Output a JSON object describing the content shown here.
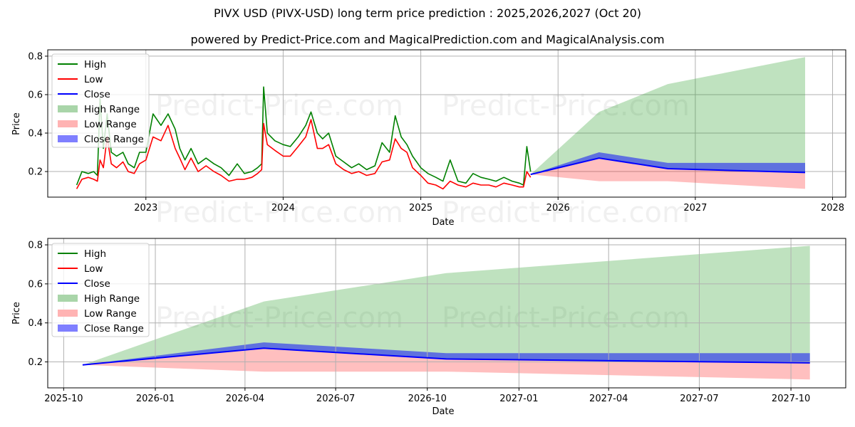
{
  "header": {
    "title": "PIVX USD (PIVX-USD) long term price prediction : 2025,2026,2027 (Oct 20)",
    "subtitle": "powered by Predict-Price.com and MagicalPrediction.com and MagicalAnalysis.com"
  },
  "watermark": "Predict-Price.com",
  "colors": {
    "high": "#008000",
    "low": "#ff0000",
    "close": "#0000ff",
    "high_range": "#2ca02c",
    "low_range": "#ff6666",
    "close_range": "#0000ff",
    "grid": "#b0b0b0"
  },
  "legend": {
    "items": [
      {
        "label": "High",
        "kind": "line",
        "color": "#008000"
      },
      {
        "label": "Low",
        "kind": "line",
        "color": "#ff0000"
      },
      {
        "label": "Close",
        "kind": "line",
        "color": "#0000ff"
      },
      {
        "label": "High Range",
        "kind": "patch",
        "color": "#a9d5a9"
      },
      {
        "label": "Low Range",
        "kind": "patch",
        "color": "#ffb3b3"
      },
      {
        "label": "Close Range",
        "kind": "patch",
        "color": "#7f7fff"
      }
    ]
  },
  "chart_data": [
    {
      "type": "line",
      "title": "PIVX USD (PIVX-USD) long term price prediction : 2025,2026,2027 (Oct 20)",
      "subtitle": "powered by Predict-Price.com and MagicalPrediction.com and MagicalAnalysis.com",
      "xlabel": "Date",
      "ylabel": "Price",
      "ylim": [
        0.067,
        0.833
      ],
      "xlim": [
        "2022-04-15",
        "2028-02-05"
      ],
      "xticks": [
        "2023",
        "2024",
        "2025",
        "2026",
        "2027",
        "2028"
      ],
      "yticks": [
        "0.2",
        "0.4",
        "0.6",
        "0.8"
      ],
      "grid": true,
      "legend_position": "upper left",
      "historical": {
        "x": [
          "2022-07-01",
          "2022-07-15",
          "2022-08-01",
          "2022-08-15",
          "2022-08-25",
          "2022-09-01",
          "2022-09-10",
          "2022-09-20",
          "2022-10-01",
          "2022-10-15",
          "2022-11-01",
          "2022-11-15",
          "2022-12-01",
          "2022-12-15",
          "2023-01-01",
          "2023-01-20",
          "2023-02-10",
          "2023-03-01",
          "2023-03-20",
          "2023-04-01",
          "2023-04-15",
          "2023-05-01",
          "2023-05-20",
          "2023-06-10",
          "2023-07-01",
          "2023-07-20",
          "2023-08-10",
          "2023-09-01",
          "2023-09-20",
          "2023-10-10",
          "2023-10-25",
          "2023-11-05",
          "2023-11-10",
          "2023-11-20",
          "2023-12-10",
          "2024-01-01",
          "2024-01-20",
          "2024-02-10",
          "2024-03-01",
          "2024-03-15",
          "2024-04-01",
          "2024-04-15",
          "2024-05-01",
          "2024-05-20",
          "2024-06-10",
          "2024-07-01",
          "2024-07-20",
          "2024-08-10",
          "2024-09-01",
          "2024-09-20",
          "2024-10-10",
          "2024-10-25",
          "2024-11-10",
          "2024-11-25",
          "2024-12-10",
          "2025-01-01",
          "2025-01-20",
          "2025-02-10",
          "2025-03-01",
          "2025-03-20",
          "2025-04-10",
          "2025-05-01",
          "2025-05-20",
          "2025-06-10",
          "2025-07-01",
          "2025-07-20",
          "2025-08-10",
          "2025-09-01",
          "2025-09-20",
          "2025-10-01",
          "2025-10-10",
          "2025-10-20"
        ],
        "high": [
          0.13,
          0.2,
          0.19,
          0.2,
          0.18,
          0.58,
          0.32,
          0.5,
          0.3,
          0.28,
          0.3,
          0.24,
          0.22,
          0.3,
          0.3,
          0.5,
          0.44,
          0.5,
          0.42,
          0.32,
          0.26,
          0.32,
          0.24,
          0.27,
          0.24,
          0.22,
          0.18,
          0.24,
          0.19,
          0.2,
          0.22,
          0.24,
          0.64,
          0.4,
          0.36,
          0.34,
          0.33,
          0.38,
          0.44,
          0.51,
          0.4,
          0.37,
          0.4,
          0.28,
          0.25,
          0.22,
          0.24,
          0.21,
          0.23,
          0.35,
          0.3,
          0.49,
          0.38,
          0.34,
          0.28,
          0.22,
          0.19,
          0.17,
          0.15,
          0.26,
          0.15,
          0.14,
          0.19,
          0.17,
          0.16,
          0.15,
          0.17,
          0.15,
          0.14,
          0.13,
          0.33,
          0.2
        ],
        "low": [
          0.11,
          0.16,
          0.17,
          0.16,
          0.15,
          0.26,
          0.22,
          0.38,
          0.24,
          0.22,
          0.25,
          0.2,
          0.19,
          0.24,
          0.26,
          0.38,
          0.36,
          0.44,
          0.32,
          0.27,
          0.21,
          0.27,
          0.2,
          0.23,
          0.2,
          0.18,
          0.15,
          0.16,
          0.16,
          0.17,
          0.19,
          0.21,
          0.45,
          0.34,
          0.31,
          0.28,
          0.28,
          0.33,
          0.38,
          0.47,
          0.32,
          0.32,
          0.34,
          0.24,
          0.21,
          0.19,
          0.2,
          0.18,
          0.19,
          0.25,
          0.26,
          0.37,
          0.32,
          0.3,
          0.22,
          0.18,
          0.14,
          0.13,
          0.11,
          0.15,
          0.13,
          0.12,
          0.14,
          0.13,
          0.13,
          0.12,
          0.14,
          0.13,
          0.12,
          0.12,
          0.2,
          0.17
        ]
      },
      "forecast": {
        "x": [
          "2025-10-20",
          "2026-04-20",
          "2026-10-20",
          "2027-10-20"
        ],
        "close": [
          0.185,
          0.27,
          0.215,
          0.195
        ],
        "high_range": {
          "lower": [
            0.185,
            0.27,
            0.215,
            0.195
          ],
          "upper": [
            0.185,
            0.51,
            0.655,
            0.795
          ]
        },
        "low_range": {
          "lower": [
            0.185,
            0.15,
            0.15,
            0.11
          ],
          "upper": [
            0.185,
            0.27,
            0.215,
            0.195
          ]
        },
        "close_range": {
          "lower": [
            0.185,
            0.27,
            0.215,
            0.195
          ],
          "upper": [
            0.185,
            0.3,
            0.245,
            0.245
          ]
        }
      }
    },
    {
      "type": "area",
      "xlabel": "Date",
      "ylabel": "Price",
      "ylim": [
        0.067,
        0.833
      ],
      "xlim": [
        "2025-09-15",
        "2027-11-25"
      ],
      "xticks": [
        "2025-10",
        "2026-01",
        "2026-04",
        "2026-07",
        "2026-10",
        "2027-01",
        "2027-04",
        "2027-07",
        "2027-10"
      ],
      "yticks": [
        "0.2",
        "0.4",
        "0.6",
        "0.8"
      ],
      "grid": true,
      "legend_position": "upper left",
      "forecast": {
        "x": [
          "2025-10-20",
          "2026-04-20",
          "2026-10-20",
          "2027-10-20"
        ],
        "close": [
          0.185,
          0.27,
          0.215,
          0.195
        ],
        "high_range": {
          "lower": [
            0.185,
            0.27,
            0.215,
            0.195
          ],
          "upper": [
            0.185,
            0.51,
            0.655,
            0.795
          ]
        },
        "low_range": {
          "lower": [
            0.185,
            0.15,
            0.15,
            0.11
          ],
          "upper": [
            0.185,
            0.27,
            0.215,
            0.195
          ]
        },
        "close_range": {
          "lower": [
            0.185,
            0.27,
            0.215,
            0.195
          ],
          "upper": [
            0.185,
            0.3,
            0.245,
            0.245
          ]
        }
      }
    }
  ]
}
